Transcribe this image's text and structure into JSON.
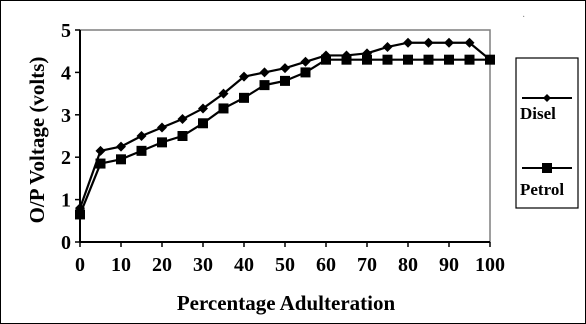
{
  "chart_data": {
    "type": "line",
    "xlabel": "Percentage Adulteration",
    "ylabel": "O/P Voltage (volts)",
    "xlim": [
      0,
      100
    ],
    "ylim": [
      0,
      5
    ],
    "xticks": [
      0,
      10,
      20,
      30,
      40,
      50,
      60,
      70,
      80,
      90,
      100
    ],
    "yticks": [
      0,
      1,
      2,
      3,
      4,
      5
    ],
    "grid": false,
    "legend_position": "right",
    "series": [
      {
        "name": "Disel",
        "marker": "diamond",
        "color": "#000000",
        "x": [
          0,
          5,
          10,
          15,
          20,
          25,
          30,
          35,
          40,
          45,
          50,
          55,
          60,
          65,
          70,
          75,
          80,
          85,
          90,
          95,
          100
        ],
        "y": [
          0.8,
          2.15,
          2.25,
          2.5,
          2.7,
          2.9,
          3.15,
          3.5,
          3.9,
          4.0,
          4.1,
          4.25,
          4.4,
          4.4,
          4.45,
          4.6,
          4.7,
          4.7,
          4.7,
          4.7,
          4.3
        ]
      },
      {
        "name": "Petrol",
        "marker": "square",
        "color": "#000000",
        "x": [
          0,
          5,
          10,
          15,
          20,
          25,
          30,
          35,
          40,
          45,
          50,
          55,
          60,
          65,
          70,
          75,
          80,
          85,
          90,
          95,
          100
        ],
        "y": [
          0.65,
          1.85,
          1.95,
          2.15,
          2.35,
          2.5,
          2.8,
          3.15,
          3.4,
          3.7,
          3.8,
          4.0,
          4.3,
          4.3,
          4.3,
          4.3,
          4.3,
          4.3,
          4.3,
          4.3,
          4.3
        ]
      }
    ]
  }
}
